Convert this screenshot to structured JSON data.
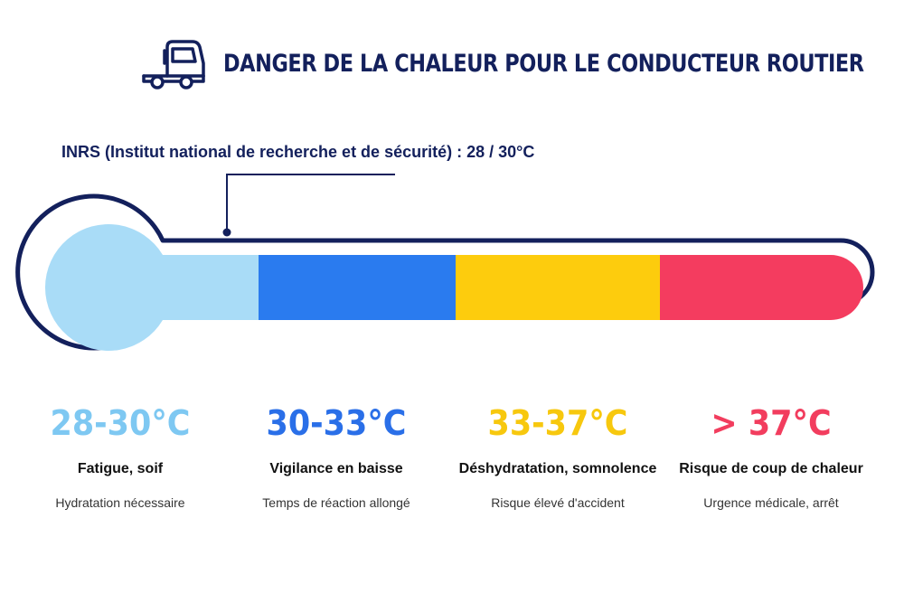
{
  "header": {
    "title": "DANGER DE LA CHALEUR POUR LE CONDUCTEUR ROUTIER",
    "icon": "truck-icon"
  },
  "note": {
    "text": "INRS (Institut national de recherche et de sécurité) : 28 / 30°C"
  },
  "colors": {
    "navy": "#13205c",
    "zone1": "#a9dcf7",
    "zone2": "#2a7bef",
    "zone3": "#fdcc0d",
    "zone4": "#f43c5f"
  },
  "zones": [
    {
      "range": "28-30°C",
      "label": "Fatigue, soif",
      "desc": "Hydratation nécessaire",
      "color": "#7ec8f2"
    },
    {
      "range": "30-33°C",
      "label": "Vigilance en baisse",
      "desc": "Temps de réaction allongé",
      "color": "#2a6fe8"
    },
    {
      "range": "33-37°C",
      "label": "Déshydratation, somnolence",
      "desc": "Risque élevé d'accident",
      "color": "#f7c80e"
    },
    {
      "range": "> 37°C",
      "label": "Risque de coup de chaleur",
      "desc": "Urgence médicale, arrêt",
      "color": "#f23d5e"
    }
  ]
}
